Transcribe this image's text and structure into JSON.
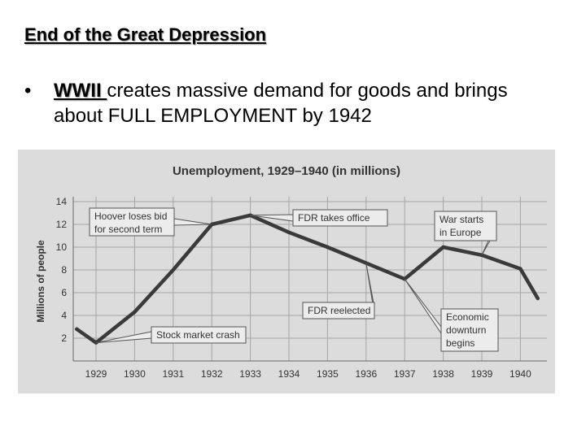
{
  "slide": {
    "title": "End of the Great Depression",
    "bullet_marker": "•",
    "bullet_emphasis": "WWII ",
    "bullet_text": "creates massive demand for goods and brings about FULL EMPLOYMENT by 1942"
  },
  "chart_data": {
    "type": "line",
    "title": "Unemployment, 1929–1940 (in millions)",
    "xlabel": "",
    "ylabel": "Millions of people",
    "ylim": [
      0,
      14
    ],
    "yticks": [
      2,
      4,
      6,
      8,
      10,
      12,
      14
    ],
    "categories": [
      "1929",
      "1930",
      "1931",
      "1932",
      "1933",
      "1934",
      "1935",
      "1936",
      "1937",
      "1938",
      "1939",
      "1940"
    ],
    "series": [
      {
        "name": "Unemployment",
        "x": [
          1928.5,
          1929,
          1930,
          1931,
          1932,
          1933,
          1934,
          1935,
          1936,
          1937,
          1938,
          1939,
          1940,
          1940.45
        ],
        "values": [
          2.8,
          1.6,
          4.3,
          8.0,
          12.0,
          12.8,
          11.3,
          10.0,
          8.6,
          7.2,
          10.0,
          9.3,
          8.1,
          5.5
        ]
      }
    ],
    "annotations": [
      {
        "lines": [
          "Hoover loses bid",
          "for second term"
        ],
        "x": 1932,
        "y": 12.0
      },
      {
        "lines": [
          "FDR takes office"
        ],
        "x": 1933,
        "y": 12.8
      },
      {
        "lines": [
          "War starts",
          "in Europe"
        ],
        "x": 1939,
        "y": 9.3
      },
      {
        "lines": [
          "FDR reelected"
        ],
        "x": 1936,
        "y": 8.6
      },
      {
        "lines": [
          "Economic",
          "downturn",
          "begins"
        ],
        "x": 1937,
        "y": 7.2
      },
      {
        "lines": [
          "Stock market crash"
        ],
        "x": 1929,
        "y": 1.6
      }
    ],
    "colors": {
      "line": "#3a3a3a",
      "grid": "#a5a5a5",
      "panel": "#dcdcdc",
      "box_fill": "#ececec",
      "text": "#333333"
    }
  }
}
